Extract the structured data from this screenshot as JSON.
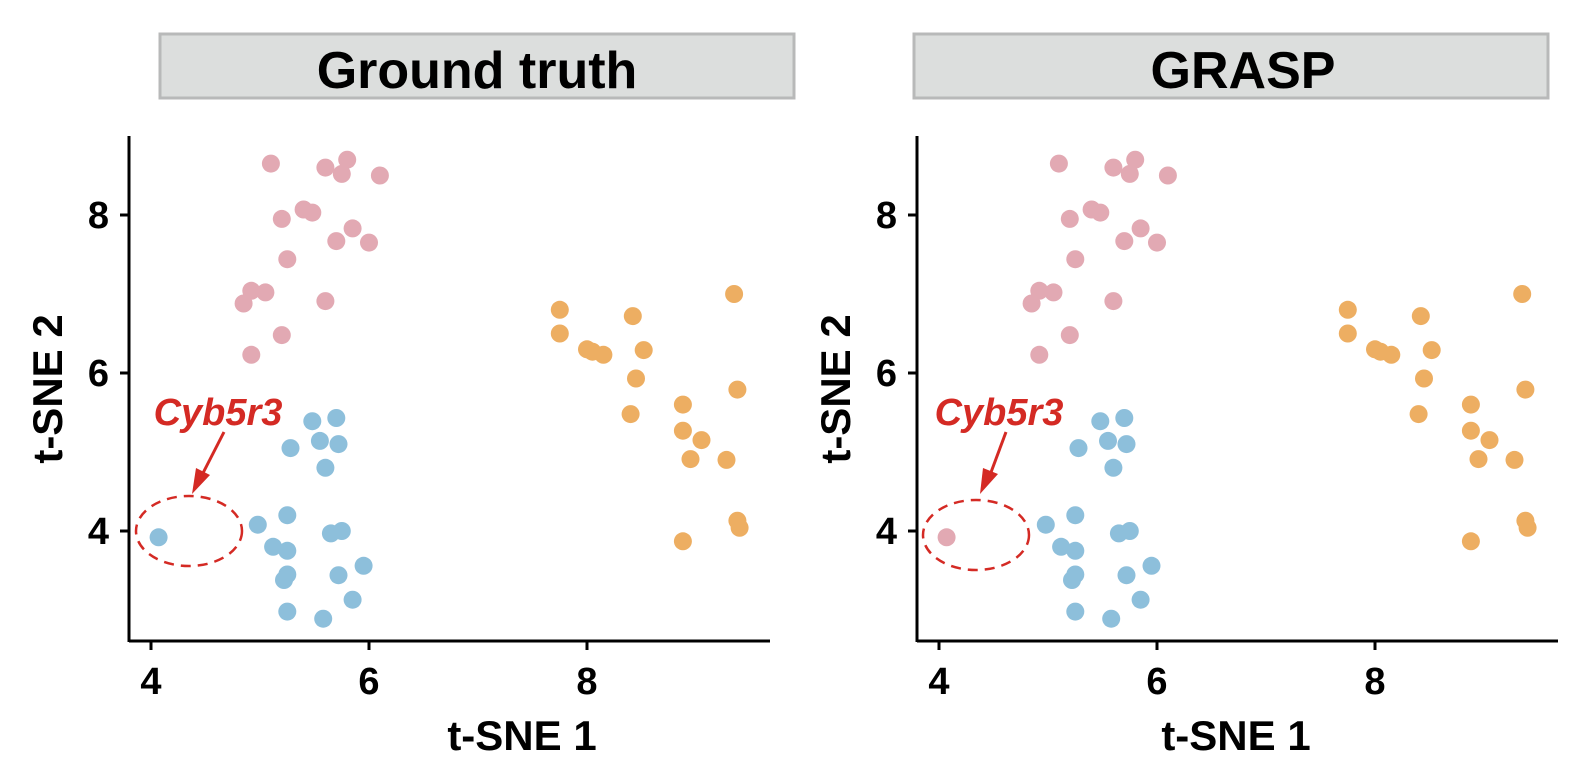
{
  "chart_data": [
    {
      "type": "scatter",
      "title": "Ground truth",
      "xlabel": "t-SNE 1",
      "ylabel": "t-SNE 2",
      "xlim": [
        3.8,
        9.6
      ],
      "ylim": [
        2.6,
        9.0
      ],
      "xticks": [
        4,
        6,
        8
      ],
      "yticks": [
        4,
        6,
        8
      ],
      "grid": false,
      "series": [
        {
          "color": "#e2a9b3",
          "points": [
            [
              5.1,
              8.65
            ],
            [
              5.6,
              8.6
            ],
            [
              5.8,
              8.7
            ],
            [
              5.75,
              8.52
            ],
            [
              6.1,
              8.5
            ],
            [
              5.4,
              8.07
            ],
            [
              5.48,
              8.03
            ],
            [
              5.2,
              7.95
            ],
            [
              5.85,
              7.83
            ],
            [
              5.7,
              7.67
            ],
            [
              6.0,
              7.65
            ],
            [
              5.25,
              7.44
            ],
            [
              4.92,
              7.04
            ],
            [
              4.85,
              6.88
            ],
            [
              5.05,
              7.02
            ],
            [
              5.6,
              6.91
            ],
            [
              5.2,
              6.48
            ],
            [
              4.92,
              6.23
            ]
          ]
        },
        {
          "color": "#8dbfdb",
          "points": [
            [
              4.07,
              3.92
            ],
            [
              5.48,
              5.39
            ],
            [
              5.7,
              5.43
            ],
            [
              5.55,
              5.14
            ],
            [
              5.28,
              5.05
            ],
            [
              5.72,
              5.1
            ],
            [
              5.6,
              4.8
            ],
            [
              4.98,
              4.08
            ],
            [
              5.25,
              4.2
            ],
            [
              5.12,
              3.8
            ],
            [
              5.25,
              3.75
            ],
            [
              5.65,
              3.97
            ],
            [
              5.75,
              4.0
            ],
            [
              5.25,
              3.45
            ],
            [
              5.22,
              3.38
            ],
            [
              5.72,
              3.44
            ],
            [
              5.95,
              3.56
            ],
            [
              5.25,
              2.98
            ],
            [
              5.85,
              3.13
            ],
            [
              5.58,
              2.89
            ]
          ]
        },
        {
          "color": "#edae62",
          "points": [
            [
              7.75,
              6.8
            ],
            [
              7.75,
              6.5
            ],
            [
              8.0,
              6.3
            ],
            [
              8.05,
              6.27
            ],
            [
              8.15,
              6.23
            ],
            [
              8.42,
              6.72
            ],
            [
              8.52,
              6.29
            ],
            [
              8.45,
              5.93
            ],
            [
              8.4,
              5.48
            ],
            [
              8.88,
              5.6
            ],
            [
              8.88,
              5.27
            ],
            [
              9.05,
              5.15
            ],
            [
              8.95,
              4.91
            ],
            [
              9.28,
              4.9
            ],
            [
              9.35,
              7.0
            ],
            [
              9.38,
              5.79
            ],
            [
              9.38,
              4.13
            ],
            [
              9.4,
              4.04
            ],
            [
              8.88,
              3.87
            ]
          ]
        }
      ],
      "annotations": [
        {
          "text": "Cyb5r3",
          "color": "#d42a24"
        }
      ]
    },
    {
      "type": "scatter",
      "title": "GRASP",
      "xlabel": "t-SNE 1",
      "ylabel": "t-SNE 2",
      "xlim": [
        3.8,
        9.6
      ],
      "ylim": [
        2.6,
        9.0
      ],
      "xticks": [
        4,
        6,
        8
      ],
      "yticks": [
        4,
        6,
        8
      ],
      "grid": false,
      "series": [
        {
          "color": "#e2a9b3",
          "points": [
            [
              5.1,
              8.65
            ],
            [
              5.6,
              8.6
            ],
            [
              5.8,
              8.7
            ],
            [
              5.75,
              8.52
            ],
            [
              6.1,
              8.5
            ],
            [
              5.4,
              8.07
            ],
            [
              5.48,
              8.03
            ],
            [
              5.2,
              7.95
            ],
            [
              5.85,
              7.83
            ],
            [
              5.7,
              7.67
            ],
            [
              6.0,
              7.65
            ],
            [
              5.25,
              7.44
            ],
            [
              4.92,
              7.04
            ],
            [
              4.85,
              6.88
            ],
            [
              5.05,
              7.02
            ],
            [
              5.6,
              6.91
            ],
            [
              5.2,
              6.48
            ],
            [
              4.92,
              6.23
            ],
            [
              4.07,
              3.92
            ]
          ]
        },
        {
          "color": "#8dbfdb",
          "points": [
            [
              5.48,
              5.39
            ],
            [
              5.7,
              5.43
            ],
            [
              5.55,
              5.14
            ],
            [
              5.28,
              5.05
            ],
            [
              5.72,
              5.1
            ],
            [
              5.6,
              4.8
            ],
            [
              4.98,
              4.08
            ],
            [
              5.25,
              4.2
            ],
            [
              5.12,
              3.8
            ],
            [
              5.25,
              3.75
            ],
            [
              5.65,
              3.97
            ],
            [
              5.75,
              4.0
            ],
            [
              5.25,
              3.45
            ],
            [
              5.22,
              3.38
            ],
            [
              5.72,
              3.44
            ],
            [
              5.95,
              3.56
            ],
            [
              5.25,
              2.98
            ],
            [
              5.85,
              3.13
            ],
            [
              5.58,
              2.89
            ]
          ]
        },
        {
          "color": "#edae62",
          "points": [
            [
              7.75,
              6.8
            ],
            [
              7.75,
              6.5
            ],
            [
              8.0,
              6.3
            ],
            [
              8.05,
              6.27
            ],
            [
              8.15,
              6.23
            ],
            [
              8.42,
              6.72
            ],
            [
              8.52,
              6.29
            ],
            [
              8.45,
              5.93
            ],
            [
              8.4,
              5.48
            ],
            [
              8.88,
              5.6
            ],
            [
              8.88,
              5.27
            ],
            [
              9.05,
              5.15
            ],
            [
              8.95,
              4.91
            ],
            [
              9.28,
              4.9
            ],
            [
              9.35,
              7.0
            ],
            [
              9.38,
              5.79
            ],
            [
              9.38,
              4.13
            ],
            [
              9.4,
              4.04
            ],
            [
              8.88,
              3.87
            ]
          ]
        }
      ],
      "annotations": [
        {
          "text": "Cyb5r3",
          "color": "#d42a24"
        }
      ]
    }
  ]
}
